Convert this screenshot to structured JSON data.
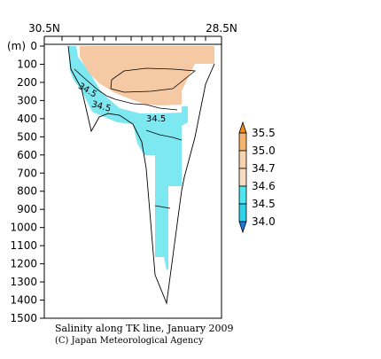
{
  "chart_data": {
    "type": "heatmap",
    "title": "Salinity along TK line, January 2009",
    "credit": "(C) Japan Meteorological Agency",
    "x_axis": {
      "left_label": "30.5N",
      "right_label": "28.5N",
      "lat_range": [
        30.5,
        28.5
      ]
    },
    "y_axis": {
      "unit_label": "(m)",
      "ylim": [
        0,
        1500
      ],
      "ticks": [
        0,
        100,
        200,
        300,
        400,
        500,
        600,
        700,
        800,
        900,
        1000,
        1100,
        1200,
        1300,
        1400,
        1500
      ]
    },
    "legend": {
      "placement": "right",
      "levels": [
        {
          "label": "35.5",
          "color": "#f08c1c"
        },
        {
          "label": "35.0",
          "color": "#f5b46e"
        },
        {
          "label": "34.7",
          "color": "#f7d4ad"
        },
        {
          "label": "34.6",
          "color": "#f8dcc2"
        },
        {
          "label": "34.5",
          "color": "#4ee6f0"
        },
        {
          "label": "34.0",
          "color": "#1e78dc"
        }
      ]
    },
    "contour_labels": [
      {
        "label": "34.5",
        "lat": 30.15,
        "depth": 230
      },
      {
        "label": "34.5",
        "lat": 29.97,
        "depth": 330
      },
      {
        "label": "34.5",
        "lat": 29.55,
        "depth": 400
      }
    ],
    "colors": {
      "high_salinity": "#f5c9a3",
      "low_salinity": "#7de8f0",
      "lowest_salinity": "#52e4f0"
    }
  }
}
